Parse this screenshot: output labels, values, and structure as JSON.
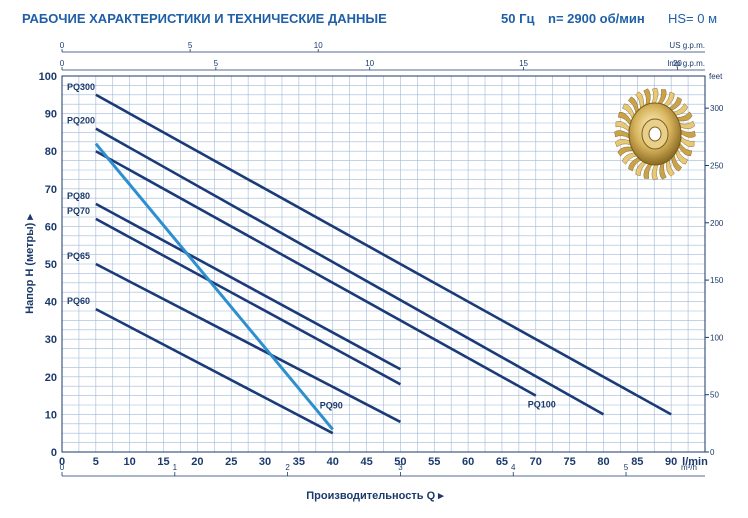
{
  "header": {
    "title": "РАБОЧИЕ ХАРАКТЕРИСТИКИ И ТЕХНИЧЕСКИЕ ДАННЫЕ",
    "freq": "50 Гц",
    "speed": "n= 2900 об/мин",
    "hs": "HS= 0 м"
  },
  "colors": {
    "grid": "#9fb8d8",
    "axis": "#1b3a6b",
    "curve": "#1b3a78",
    "pq90": "#2e8fcf",
    "header": "#1f5fa8"
  },
  "impeller_icon": "brass-impeller-image",
  "chart_data": {
    "type": "line",
    "xlabel": "Производительность Q",
    "ylabel": "Напор H (метры)",
    "grid": true,
    "x_lpm": {
      "label": "l/min",
      "range": [
        0,
        95
      ],
      "ticks": [
        0,
        5,
        10,
        15,
        20,
        25,
        30,
        35,
        40,
        45,
        50,
        55,
        60,
        65,
        70,
        75,
        80,
        85,
        90
      ]
    },
    "x_m3h": {
      "label": "m³/h",
      "ticks": [
        0,
        1,
        2,
        3,
        4,
        5
      ]
    },
    "x_usgpm": {
      "label": "US g.p.m.",
      "ticks": [
        0,
        5,
        10
      ]
    },
    "x_impgpm": {
      "label": "Imp g.p.m.",
      "ticks": [
        0,
        5,
        10,
        15,
        20
      ]
    },
    "y_m": {
      "range": [
        0,
        100
      ],
      "ticks": [
        0,
        10,
        20,
        30,
        40,
        50,
        60,
        70,
        80,
        90,
        100
      ]
    },
    "y_ft": {
      "label": "feet",
      "ticks": [
        0,
        50,
        100,
        150,
        200,
        250,
        300
      ]
    },
    "series": [
      {
        "name": "PQ300",
        "x": [
          5,
          90
        ],
        "y": [
          95,
          10
        ]
      },
      {
        "name": "PQ200",
        "x": [
          5,
          80
        ],
        "y": [
          86,
          10
        ]
      },
      {
        "name": "PQ100",
        "x": [
          5,
          70
        ],
        "y": [
          80,
          15
        ]
      },
      {
        "name": "PQ80",
        "x": [
          5,
          50
        ],
        "y": [
          66,
          22
        ]
      },
      {
        "name": "PQ70",
        "x": [
          5,
          50
        ],
        "y": [
          62,
          18
        ]
      },
      {
        "name": "PQ65",
        "x": [
          5,
          50
        ],
        "y": [
          50,
          8
        ]
      },
      {
        "name": "PQ60",
        "x": [
          5,
          40
        ],
        "y": [
          38,
          5
        ]
      },
      {
        "name": "PQ90",
        "x": [
          5,
          40
        ],
        "y": [
          82,
          6
        ]
      }
    ]
  }
}
